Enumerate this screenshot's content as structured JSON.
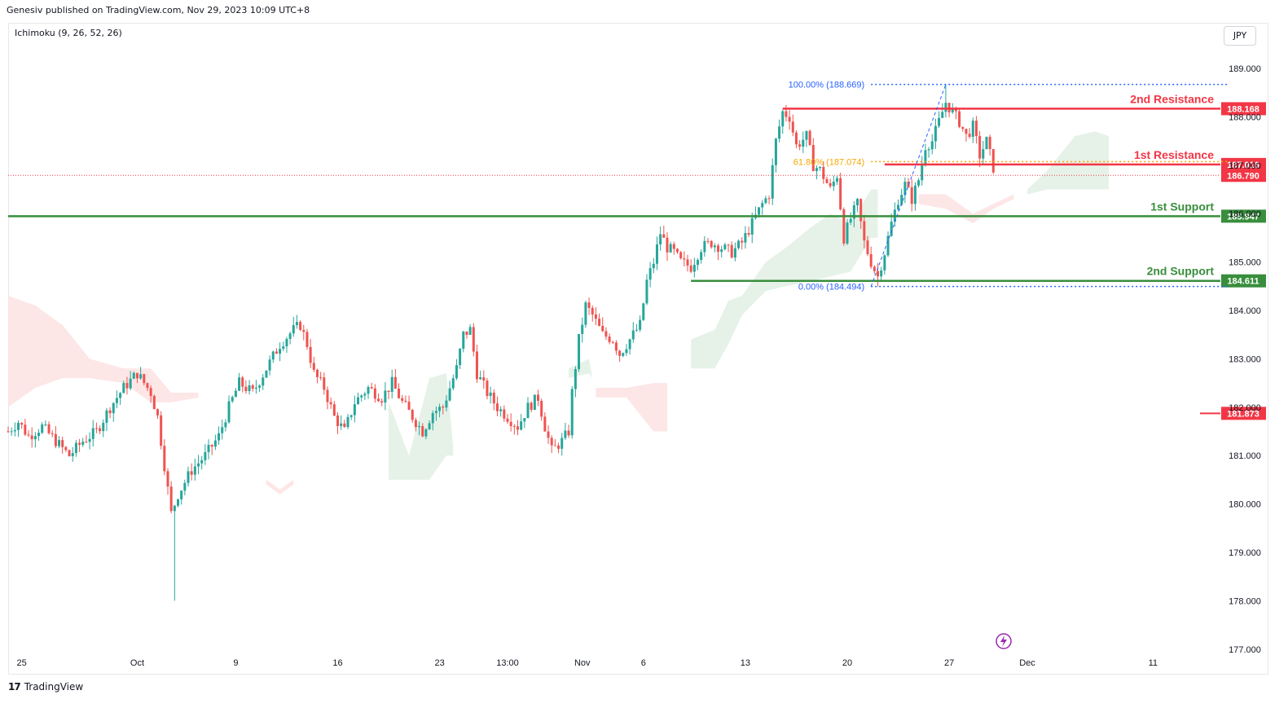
{
  "header": {
    "published": "Genesiv published on TradingView.com, Nov 29, 2023 10:09 UTC+8",
    "indicator": "Ichimoku (9, 26, 52, 26)",
    "currency": "JPY"
  },
  "footer": {
    "brand": "TradingView",
    "logo_icon": "tradingview-logo-icon"
  },
  "colors": {
    "bull": "#26a69a",
    "bear": "#ef5350",
    "resistance": "#f23645",
    "support": "#388e3c",
    "fib_blue": "#2962ff",
    "fib_orange": "#f7a600",
    "cloud_green": "#e3f1e5",
    "cloud_red": "#fde3e3",
    "lightning": "#9c27b0"
  },
  "chart_data": {
    "type": "candlestick",
    "title": "",
    "ylim": [
      177.0,
      189.5
    ],
    "y_ticks": [
      "177.000",
      "178.000",
      "179.000",
      "180.000",
      "181.000",
      "182.000",
      "183.000",
      "184.000",
      "185.000",
      "186.000",
      "187.000",
      "188.000",
      "189.000"
    ],
    "x_ticks": [
      {
        "label": "25",
        "i": 4
      },
      {
        "label": "Oct",
        "i": 38
      },
      {
        "label": "9",
        "i": 67
      },
      {
        "label": "16",
        "i": 97
      },
      {
        "label": "23",
        "i": 127
      },
      {
        "label": "13:00",
        "i": 147
      },
      {
        "label": "Nov",
        "i": 169
      },
      {
        "label": "6",
        "i": 187
      },
      {
        "label": "13",
        "i": 217
      },
      {
        "label": "20",
        "i": 247
      },
      {
        "label": "27",
        "i": 277
      },
      {
        "label": "Dec",
        "i": 300
      },
      {
        "label": "11",
        "i": 337
      }
    ],
    "price_path": [
      [
        0,
        181.5
      ],
      [
        3,
        181.7
      ],
      [
        6,
        181.4
      ],
      [
        10,
        181.6
      ],
      [
        14,
        181.3
      ],
      [
        18,
        181.0
      ],
      [
        22,
        181.3
      ],
      [
        26,
        181.5
      ],
      [
        30,
        182.0
      ],
      [
        34,
        182.4
      ],
      [
        38,
        182.7
      ],
      [
        42,
        182.3
      ],
      [
        44,
        181.8
      ],
      [
        46,
        180.8
      ],
      [
        48,
        179.8
      ],
      [
        50,
        180.2
      ],
      [
        54,
        180.7
      ],
      [
        58,
        181.0
      ],
      [
        62,
        181.4
      ],
      [
        65,
        182.0
      ],
      [
        68,
        182.5
      ],
      [
        72,
        182.3
      ],
      [
        76,
        182.8
      ],
      [
        80,
        183.3
      ],
      [
        84,
        183.6
      ],
      [
        86,
        183.7
      ],
      [
        88,
        183.3
      ],
      [
        90,
        182.7
      ],
      [
        93,
        182.4
      ],
      [
        96,
        181.8
      ],
      [
        99,
        181.5
      ],
      [
        102,
        182.1
      ],
      [
        106,
        182.4
      ],
      [
        110,
        182.2
      ],
      [
        113,
        182.5
      ],
      [
        116,
        182.1
      ],
      [
        119,
        181.8
      ],
      [
        122,
        181.5
      ],
      [
        125,
        181.9
      ],
      [
        128,
        182.0
      ],
      [
        132,
        182.8
      ],
      [
        134,
        183.5
      ],
      [
        136,
        183.6
      ],
      [
        138,
        182.7
      ],
      [
        141,
        182.3
      ],
      [
        144,
        182.0
      ],
      [
        147,
        181.8
      ],
      [
        150,
        181.6
      ],
      [
        153,
        182.0
      ],
      [
        156,
        182.2
      ],
      [
        158,
        181.6
      ],
      [
        160,
        181.1
      ],
      [
        163,
        181.3
      ],
      [
        165,
        181.5
      ],
      [
        166,
        182.3
      ],
      [
        168,
        183.4
      ],
      [
        170,
        184.1
      ],
      [
        172,
        183.9
      ],
      [
        175,
        183.5
      ],
      [
        178,
        183.4
      ],
      [
        180,
        183.1
      ],
      [
        183,
        183.4
      ],
      [
        186,
        183.7
      ],
      [
        188,
        184.6
      ],
      [
        190,
        185.0
      ],
      [
        192,
        185.6
      ],
      [
        194,
        185.3
      ],
      [
        196,
        185.2
      ],
      [
        198,
        185.0
      ],
      [
        201,
        184.9
      ],
      [
        204,
        185.3
      ],
      [
        207,
        185.4
      ],
      [
        210,
        185.3
      ],
      [
        213,
        185.2
      ],
      [
        216,
        185.4
      ],
      [
        219,
        185.8
      ],
      [
        222,
        186.2
      ],
      [
        224,
        186.4
      ],
      [
        226,
        187.5
      ],
      [
        228,
        188.1
      ],
      [
        230,
        188.0
      ],
      [
        232,
        187.4
      ],
      [
        235,
        187.6
      ],
      [
        237,
        187.0
      ],
      [
        239,
        186.9
      ],
      [
        242,
        186.5
      ],
      [
        244,
        186.8
      ],
      [
        246,
        185.5
      ],
      [
        248,
        185.9
      ],
      [
        250,
        186.2
      ],
      [
        252,
        185.4
      ],
      [
        254,
        185.0
      ],
      [
        256,
        184.7
      ],
      [
        258,
        185.2
      ],
      [
        260,
        185.8
      ],
      [
        262,
        186.3
      ],
      [
        264,
        186.6
      ],
      [
        266,
        186.3
      ],
      [
        268,
        186.7
      ],
      [
        270,
        187.4
      ],
      [
        272,
        187.5
      ],
      [
        274,
        187.9
      ],
      [
        276,
        188.3
      ],
      [
        278,
        188.1
      ],
      [
        280,
        187.9
      ],
      [
        282,
        187.6
      ],
      [
        284,
        187.8
      ],
      [
        286,
        187.2
      ],
      [
        288,
        187.5
      ],
      [
        290,
        186.95
      ]
    ],
    "cloud_green_segments": [
      [
        [
          112,
          182.1,
          180.5
        ],
        [
          118,
          181.0,
          180.5
        ],
        [
          124,
          182.6,
          180.5
        ],
        [
          129,
          182.7,
          181.0
        ],
        [
          131,
          181.2,
          181.0
        ]
      ],
      [
        [
          165,
          182.8,
          182.6
        ],
        [
          171,
          183.0,
          182.7
        ],
        [
          172,
          182.6,
          182.6
        ]
      ],
      [
        [
          201,
          183.4,
          182.8
        ],
        [
          208,
          183.6,
          182.8
        ],
        [
          212,
          184.2,
          183.3
        ],
        [
          216,
          184.3,
          183.9
        ],
        [
          223,
          185.0,
          184.4
        ],
        [
          229,
          185.3,
          184.5
        ],
        [
          236,
          185.7,
          184.6
        ],
        [
          242,
          186.0,
          184.7
        ],
        [
          248,
          185.8,
          184.8
        ],
        [
          254,
          186.5,
          185.5
        ],
        [
          256,
          186.5,
          185.5
        ]
      ],
      [
        [
          300,
          186.5,
          186.4
        ],
        [
          306,
          186.9,
          186.5
        ],
        [
          314,
          187.6,
          186.5
        ],
        [
          320,
          187.7,
          186.5
        ],
        [
          324,
          187.6,
          186.5
        ]
      ]
    ],
    "cloud_red_segments": [
      [
        [
          0,
          184.3,
          182.0
        ],
        [
          8,
          184.1,
          182.4
        ],
        [
          16,
          183.7,
          182.6
        ],
        [
          24,
          183.0,
          182.6
        ],
        [
          34,
          182.8,
          182.5
        ],
        [
          42,
          182.8,
          182.1
        ],
        [
          48,
          182.3,
          182.1
        ],
        [
          56,
          182.3,
          182.2
        ]
      ],
      [
        [
          76,
          180.5,
          180.4
        ],
        [
          80,
          180.3,
          180.2
        ],
        [
          84,
          180.5,
          180.4
        ]
      ],
      [
        [
          173,
          182.4,
          182.2
        ],
        [
          182,
          182.4,
          182.2
        ],
        [
          190,
          182.5,
          181.5
        ],
        [
          194,
          182.5,
          181.5
        ]
      ],
      [
        [
          268,
          186.4,
          186.2
        ],
        [
          276,
          186.4,
          186.1
        ],
        [
          284,
          186.0,
          185.8
        ],
        [
          290,
          186.2,
          186.1
        ],
        [
          296,
          186.4,
          186.3
        ]
      ]
    ],
    "levels": [
      {
        "name": "2nd Resistance",
        "value": 188.168,
        "label": "188.168",
        "type": "resistance",
        "x_start_i": 228
      },
      {
        "name": "1st Resistance",
        "value": 187.016,
        "label": "187.016",
        "type": "resistance",
        "x_start_i": 258
      },
      {
        "name": "1st Support",
        "value": 185.947,
        "label": "185.947",
        "type": "support",
        "x_start_i": 0
      },
      {
        "name": "2nd Support",
        "value": 184.611,
        "label": "184.611",
        "type": "support",
        "x_start_i": 201
      }
    ],
    "current_price": {
      "value": 186.79,
      "label": "186.790"
    },
    "marker_price": {
      "value": 181.873,
      "label": "181.873"
    },
    "fibonacci": [
      {
        "label": "100.00% (188.669)",
        "value": 188.669,
        "color": "blue"
      },
      {
        "label": "61.80% (187.074)",
        "value": 187.074,
        "color": "orange"
      },
      {
        "label": "0.00% (184.494)",
        "value": 184.494,
        "color": "blue"
      }
    ],
    "fib_range_i": [
      254,
      359
    ],
    "fib_trend": [
      [
        254,
        184.494
      ],
      [
        276,
        188.669
      ]
    ]
  }
}
